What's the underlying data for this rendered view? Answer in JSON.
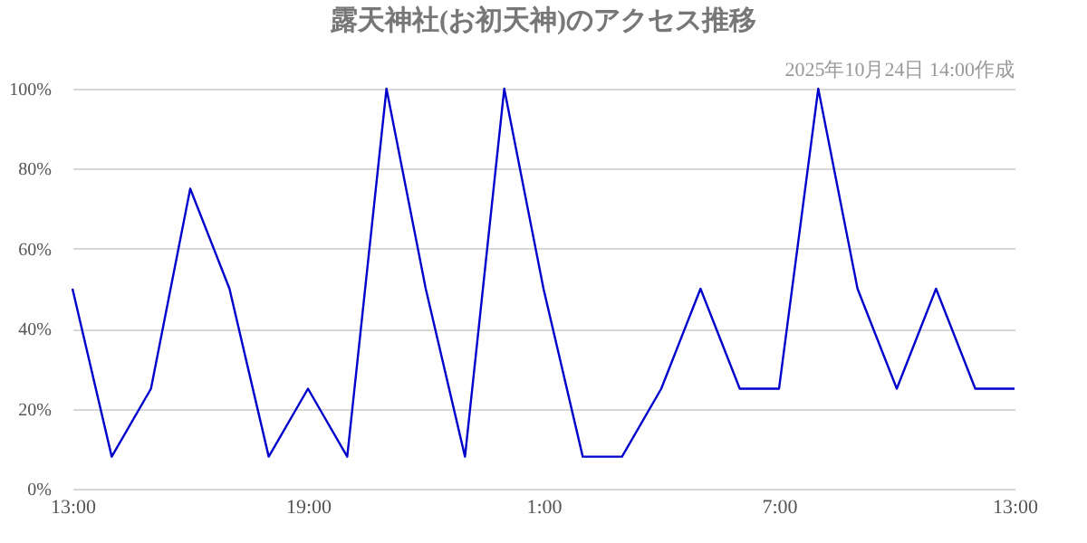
{
  "chart_data": {
    "type": "line",
    "title": "露天神社(お初天神)のアクセス推移",
    "annotations": [
      "2025年10月24日 14:00作成"
    ],
    "x": [
      "2025-10-23T13:00",
      "2025-10-23T14:00",
      "2025-10-23T15:00",
      "2025-10-23T16:00",
      "2025-10-23T17:00",
      "2025-10-23T18:00",
      "2025-10-23T19:00",
      "2025-10-23T20:00",
      "2025-10-23T21:00",
      "2025-10-23T22:00",
      "2025-10-23T23:00",
      "2025-10-24T00:00",
      "2025-10-24T01:00",
      "2025-10-24T02:00",
      "2025-10-24T03:00",
      "2025-10-24T04:00",
      "2025-10-24T05:00",
      "2025-10-24T06:00",
      "2025-10-24T07:00",
      "2025-10-24T08:00",
      "2025-10-24T09:00",
      "2025-10-24T10:00",
      "2025-10-24T11:00",
      "2025-10-24T12:00",
      "2025-10-24T13:00"
    ],
    "series": [
      {
        "color": "#0000cc",
        "values": [
          50,
          8,
          25,
          75,
          50,
          8,
          25,
          8,
          100,
          50,
          8,
          100,
          50,
          8,
          8,
          25,
          50,
          25,
          25,
          100,
          50,
          25,
          50,
          25,
          25
        ]
      }
    ],
    "xlim": [
      "2025-10-23T13:00",
      "2025-10-24T13:00"
    ],
    "xticks": [
      {
        "value": "2025-10-23T13:00",
        "label": "13:00"
      },
      {
        "value": "2025-10-23T19:00",
        "label": "19:00"
      },
      {
        "value": "2025-10-24T01:00",
        "label": "1:00"
      },
      {
        "value": "2025-10-24T07:00",
        "label": "7:00"
      },
      {
        "value": "2025-10-24T13:00",
        "label": "13:00"
      }
    ],
    "ylim": [
      0,
      100
    ],
    "yticks": [
      {
        "value": 0,
        "label": "0%"
      },
      {
        "value": 20,
        "label": "20%"
      },
      {
        "value": 40,
        "label": "40%"
      },
      {
        "value": 60,
        "label": "60%"
      },
      {
        "value": 80,
        "label": "80%"
      },
      {
        "value": 100,
        "label": "100%"
      }
    ],
    "grid": "y",
    "marker": "none",
    "line_style": "solid",
    "legend": false
  }
}
